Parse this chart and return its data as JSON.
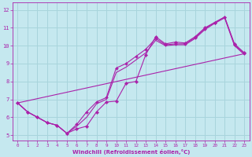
{
  "xlabel": "Windchill (Refroidissement éolien,°C)",
  "ylabel": "",
  "xlim": [
    -0.5,
    23.5
  ],
  "ylim": [
    4.7,
    12.4
  ],
  "xticks": [
    0,
    1,
    2,
    3,
    4,
    5,
    6,
    7,
    8,
    9,
    10,
    11,
    12,
    13,
    14,
    15,
    16,
    17,
    18,
    19,
    20,
    21,
    22,
    23
  ],
  "yticks": [
    5,
    6,
    7,
    8,
    9,
    10,
    11,
    12
  ],
  "bg_color": "#c5e8ef",
  "grid_color": "#a8d4dc",
  "line_color": "#aa22aa",
  "line1_x": [
    0,
    1,
    2,
    3,
    4,
    5,
    6,
    7,
    8,
    9,
    10,
    11,
    12,
    13,
    14,
    15,
    16,
    17,
    18,
    19,
    20,
    21,
    22,
    23
  ],
  "line1_y": [
    6.8,
    6.3,
    6.0,
    5.7,
    5.55,
    5.1,
    5.35,
    5.5,
    6.3,
    6.85,
    6.9,
    7.9,
    8.0,
    9.5,
    10.5,
    10.1,
    10.2,
    10.15,
    10.5,
    11.0,
    11.3,
    11.6,
    10.1,
    9.6
  ],
  "line2_x": [
    0,
    1,
    2,
    3,
    4,
    5,
    6,
    7,
    8,
    9,
    10,
    11,
    12,
    13,
    14,
    15,
    16,
    17,
    18,
    19,
    20,
    21,
    22,
    23
  ],
  "line2_y": [
    6.8,
    6.3,
    6.0,
    5.7,
    5.55,
    5.1,
    5.6,
    6.3,
    6.85,
    7.1,
    8.75,
    9.0,
    9.4,
    9.8,
    10.4,
    10.05,
    10.1,
    10.1,
    10.45,
    10.95,
    11.3,
    11.6,
    10.05,
    9.55
  ],
  "line3_x": [
    0,
    1,
    2,
    3,
    4,
    5,
    6,
    7,
    8,
    9,
    10,
    11,
    12,
    13,
    14,
    15,
    16,
    17,
    18,
    19,
    20,
    21,
    22,
    23
  ],
  "line3_y": [
    6.8,
    6.3,
    6.0,
    5.7,
    5.55,
    5.1,
    5.5,
    6.0,
    6.75,
    7.0,
    8.5,
    8.8,
    9.2,
    9.6,
    10.3,
    10.0,
    10.05,
    10.05,
    10.4,
    10.9,
    11.25,
    11.55,
    10.0,
    9.5
  ],
  "line4_x": [
    0,
    23
  ],
  "line4_y": [
    6.8,
    9.55
  ],
  "marker_x": [
    0,
    1,
    2,
    3,
    4,
    5,
    6,
    7,
    8,
    9,
    10,
    11,
    12,
    13,
    14,
    15,
    16,
    17,
    18,
    19,
    20,
    21,
    22,
    23
  ],
  "marker_y": [
    6.8,
    6.3,
    6.0,
    5.7,
    5.55,
    5.1,
    5.35,
    5.5,
    6.3,
    6.85,
    6.9,
    7.9,
    8.0,
    9.5,
    10.5,
    10.1,
    10.2,
    10.15,
    10.5,
    11.0,
    11.3,
    11.6,
    10.1,
    9.6
  ]
}
